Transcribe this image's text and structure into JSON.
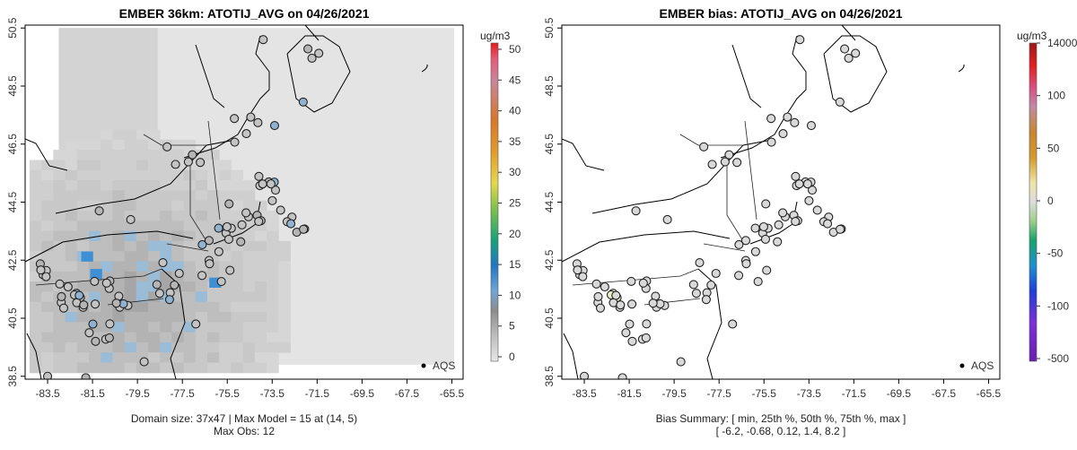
{
  "chart_data": [
    {
      "type": "map",
      "title": "EMBER 36km: ATOTIJ_AVG on 04/26/2021",
      "x_ticks": [
        "-83.5",
        "-81.5",
        "-79.5",
        "-77.5",
        "-75.5",
        "-73.5",
        "-71.5",
        "-69.5",
        "-67.5",
        "-65.5"
      ],
      "y_ticks": [
        "38.5",
        "40.5",
        "42.5",
        "44.5",
        "46.5",
        "48.5",
        "50.5"
      ],
      "xlim": [
        -84.5,
        -65.0
      ],
      "ylim": [
        38.4,
        50.6
      ],
      "colorbar": {
        "unit": "ug/m3",
        "ticks": [
          "0",
          "5",
          "10",
          "15",
          "20",
          "25",
          "30",
          "35",
          "40",
          "45",
          "50"
        ]
      },
      "legend": "AQS",
      "caption_line1": "Domain size: 37x47 | Max Model = 15 at (14, 5)",
      "caption_line2": "Max Obs: 12"
    },
    {
      "type": "map",
      "title": "EMBER bias: ATOTIJ_AVG on 04/26/2021",
      "x_ticks": [
        "-83.5",
        "-81.5",
        "-79.5",
        "-77.5",
        "-75.5",
        "-73.5",
        "-71.5",
        "-69.5",
        "-67.5",
        "-65.5"
      ],
      "y_ticks": [
        "38.5",
        "40.5",
        "42.5",
        "44.5",
        "46.5",
        "48.5",
        "50.5"
      ],
      "xlim": [
        -84.5,
        -65.0
      ],
      "ylim": [
        38.4,
        50.6
      ],
      "colorbar": {
        "unit": "ug/m3",
        "ticks": [
          "14000",
          "100",
          "50",
          "0",
          "-50",
          "-100",
          "-500"
        ]
      },
      "legend": "AQS",
      "caption_line1": "Bias Summary: [ min, 25th %, 50th %, 75th %, max ]",
      "caption_line2": "[ -6.2,   -0.68,  0.12,   1.4,   8.2 ]"
    }
  ]
}
